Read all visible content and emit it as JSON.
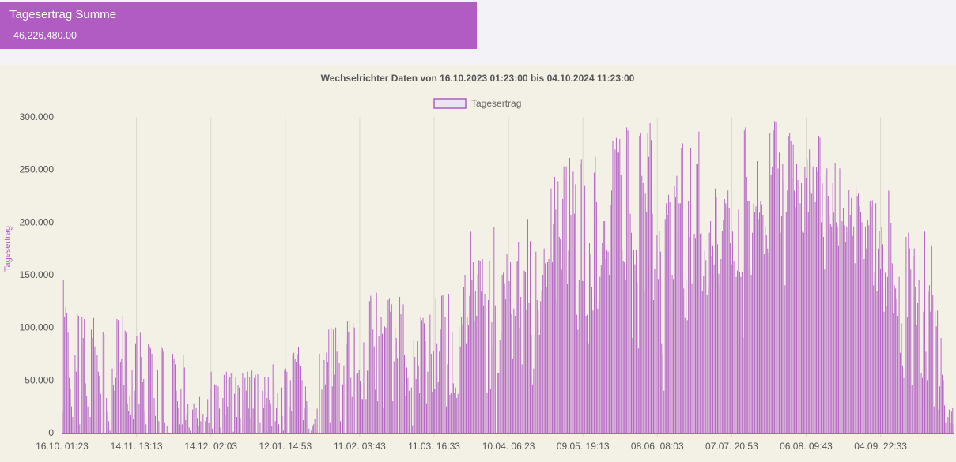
{
  "summary": {
    "title": "Tagesertrag Summe",
    "value": "46,226,480.00"
  },
  "colors": {
    "accent": "#b05cc2",
    "legend_fill": "#e8e6f0",
    "plot_background": "#f3f1e6",
    "page_background": "#f3f2f6"
  },
  "chart_data": {
    "type": "bar",
    "title": "Wechselrichter Daten von 16.10.2023 01:23:00 bis 04.10.2024 11:23:00",
    "legend": [
      "Tagesertrag"
    ],
    "legend_position": "top",
    "ylabel": "Tagesertrag",
    "ylim": [
      0,
      300000
    ],
    "y_tick_labels": [
      "0",
      "50.000",
      "100.000",
      "150.000",
      "200.000",
      "250.000",
      "300.000"
    ],
    "x_tick_labels": [
      "16.10. 01:23",
      "14.11. 13:13",
      "14.12. 02:03",
      "12.01. 14:53",
      "11.02. 03:43",
      "11.03. 16:33",
      "10.04. 06:23",
      "09.05. 19:13",
      "08.06. 08:03",
      "07.07. 20:53",
      "06.08. 09:43",
      "04.09. 22:33"
    ],
    "grid": "vertical",
    "series": [
      {
        "name": "Tagesertrag",
        "values": [
          20000,
          145000,
          110000,
          119000,
          114000,
          95000,
          52000,
          42000,
          25000,
          15000,
          0,
          74000,
          58000,
          113000,
          111000,
          8000,
          0,
          110000,
          90000,
          108000,
          47000,
          35000,
          25000,
          32000,
          15000,
          98000,
          90000,
          109000,
          82000,
          0,
          74000,
          58000,
          54000,
          37000,
          0,
          96000,
          93000,
          0,
          33000,
          20000,
          11000,
          2000,
          80000,
          61000,
          45000,
          40000,
          52000,
          108000,
          107000,
          0,
          67000,
          70000,
          111000,
          45000,
          97000,
          95000,
          28000,
          21000,
          35000,
          17000,
          60000,
          13000,
          40000,
          85000,
          92000,
          87000,
          27000,
          95000,
          72000,
          48000,
          51000,
          20000,
          8000,
          0,
          84000,
          82000,
          80000,
          75000,
          60000,
          33000,
          16000,
          0,
          60000,
          11000,
          0,
          82000,
          80000,
          77000,
          10000,
          0,
          6000,
          1000,
          0,
          0,
          0,
          75000,
          70000,
          65000,
          40000,
          30000,
          24000,
          8000,
          42000,
          8000,
          74000,
          62000,
          12000,
          18000,
          27000,
          5000,
          2000,
          0,
          22000,
          28000,
          10000,
          24000,
          14000,
          6000,
          34000,
          11000,
          20000,
          18000,
          0,
          11000,
          15000,
          32000,
          9000,
          41000,
          58000,
          4000,
          0,
          46000,
          45000,
          26000,
          44000,
          23000,
          5000,
          0,
          33000,
          55000,
          17000,
          58000,
          25000,
          51000,
          53000,
          57000,
          58000,
          1000,
          37000,
          53000,
          15000,
          45000,
          43000,
          14000,
          0,
          57000,
          32000,
          52000,
          40000,
          58000,
          23000,
          53000,
          14000,
          59000,
          23000,
          52000,
          55000,
          0,
          56000,
          45000,
          10000,
          0,
          40000,
          24000,
          53000,
          26000,
          33000,
          53000,
          31000,
          28000,
          6000,
          65000,
          48000,
          11000,
          24000,
          38000,
          8000,
          0,
          43000,
          16000,
          2000,
          60000,
          61000,
          58000,
          0,
          25000,
          50000,
          21000,
          74000,
          76000,
          70000,
          67000,
          75000,
          81000,
          65000,
          63000,
          50000,
          12000,
          23000,
          44000,
          30000,
          25000,
          4000,
          0,
          2000,
          6000,
          8000,
          13000,
          3000,
          23000,
          0,
          75000,
          0,
          41000,
          54000,
          69000,
          46000,
          76000,
          67000,
          98000,
          10000,
          100000,
          44000,
          98000,
          55000,
          100000,
          77000,
          94000,
          66000,
          11000,
          0,
          46000,
          64000,
          0,
          85000,
          106000,
          96000,
          108000,
          52000,
          34000,
          104000,
          100000,
          0,
          56000,
          57000,
          60000,
          49000,
          32000,
          32000,
          86000,
          55000,
          32000,
          59000,
          59000,
          125000,
          130000,
          128000,
          98000,
          82000,
          41000,
          133000,
          30000,
          92000,
          95000,
          110000,
          94000,
          24000,
          101000,
          100000,
          100000,
          126000,
          128000,
          115000,
          122000,
          30000,
          68000,
          100000,
          90000,
          71000,
          0,
          129000,
          113000,
          55000,
          122000,
          74000,
          35000,
          62000,
          52000,
          40000,
          0,
          43000,
          7000,
          88000,
          72000,
          51000,
          87000,
          64000,
          38000,
          110000,
          107000,
          109000,
          104000,
          87000,
          28000,
          58000,
          80000,
          112000,
          75000,
          39000,
          78000,
          42000,
          128000,
          85000,
          48000,
          77000,
          98000,
          130000,
          131000,
          101000,
          110000,
          25000,
          65000,
          132000,
          36000,
          38000,
          96000,
          47000,
          38000,
          43000,
          33000,
          37000,
          101000,
          82000,
          110000,
          103000,
          138000,
          150000,
          85000,
          110000,
          102000,
          130000,
          191000,
          145000,
          162000,
          106000,
          135000,
          111000,
          150000,
          164000,
          163000,
          134000,
          165000,
          121000,
          132000,
          166000,
          38000,
          126000,
          163000,
          42000,
          105000,
          79000,
          195000,
          121000,
          0,
          57000,
          57000,
          88000,
          95000,
          150000,
          152000,
          142000,
          127000,
          170000,
          158000,
          144000,
          162000,
          113000,
          70000,
          118000,
          111000,
          162000,
          163000,
          181000,
          100000,
          129000,
          65000,
          152000,
          154000,
          153000,
          117000,
          203000,
          123000,
          182000,
          93000,
          46000,
          61000,
          93000,
          172000,
          126000,
          117000,
          93000,
          125000,
          135000,
          150000,
          175000,
          161000,
          138000,
          162000,
          165000,
          107000,
          232000,
          162000,
          198000,
          243000,
          212000,
          125000,
          239000,
          186000,
          184000,
          155000,
          222000,
          253000,
          240000,
          253000,
          141000,
          173000,
          261000,
          207000,
          155000,
          248000,
          208000,
          236000,
          112000,
          98000,
          145000,
          255000,
          260000,
          144000,
          144000,
          235000,
          111000,
          112000,
          85000,
          180000,
          170000,
          138000,
          116000,
          247000,
          262000,
          219000,
          118000,
          125000,
          148000,
          159000,
          180000,
          201000,
          201000,
          165000,
          174000,
          172000,
          150000,
          216000,
          230000,
          277000,
          262000,
          269000,
          280000,
          266000,
          266000,
          279000,
          245000,
          173000,
          163000,
          162000,
          145000,
          290000,
          287000,
          277000,
          208000,
          190000,
          90000,
          174000,
          160000,
          174000,
          143000,
          80000,
          282000,
          285000,
          244000,
          237000,
          134000,
          227000,
          210000,
          285000,
          262000,
          294000,
          278000,
          208000,
          126000,
          156000,
          235000,
          188000,
          146000,
          192000,
          172000,
          85000,
          74000,
          40000,
          203000,
          218000,
          207000,
          226000,
          219000,
          119000,
          150000,
          146000,
          234000,
          224000,
          244000,
          186000,
          218000,
          218000,
          270000,
          275000,
          137000,
          109000,
          146000,
          107000,
          220000,
          186000,
          270000,
          142000,
          160000,
          189000,
          185000,
          255000,
          255000,
          286000,
          189000,
          190000,
          135000,
          149000,
          173000,
          164000,
          131000,
          138000,
          190000,
          201000,
          168000,
          178000,
          160000,
          232000,
          224000,
          179000,
          151000,
          140000,
          165000,
          192000,
          202000,
          222000,
          218000,
          215000,
          230000,
          213000,
          180000,
          160000,
          191000,
          163000,
          108000,
          148000,
          154000,
          212000,
          153000,
          148000,
          153000,
          90000,
          287000,
          290000,
          243000,
          220000,
          220000,
          156000,
          150000,
          190000,
          218000,
          210000,
          215000,
          258000,
          203000,
          209000,
          220000,
          217000,
          207000,
          170000,
          195000,
          188000,
          175000,
          171000,
          285000,
          245000,
          252000,
          287000,
          296000,
          295000,
          275000,
          251000,
          266000,
          190000,
          206000,
          255000,
          240000,
          140000,
          210000,
          230000,
          282000,
          285000,
          277000,
          242000,
          274000,
          230000,
          214000,
          255000,
          240000,
          270000,
          218000,
          237000,
          191000,
          190000,
          252000,
          242000,
          260000,
          210000,
          269000,
          229000,
          227000,
          253000,
          230000,
          219000,
          252000,
          248000,
          282000,
          280000,
          200000,
          237000,
          186000,
          155000,
          244000,
          251000,
          225000,
          207000,
          198000,
          196000,
          237000,
          209000,
          256000,
          200000,
          195000,
          178000,
          251000,
          232000,
          201000,
          213000,
          197000,
          181000,
          196000,
          190000,
          231000,
          207000,
          223000,
          187000,
          196000,
          161000,
          235000,
          225000,
          227000,
          215000,
          210000,
          200000,
          160000,
          165000,
          196000,
          175000,
          202000,
          197000,
          220000,
          215000,
          221000,
          140000,
          153000,
          218000,
          135000,
          175000,
          192000,
          156000,
          195000,
          179000,
          115000,
          152000,
          120000,
          148000,
          230000,
          229000,
          199000,
          161000,
          114000,
          140000,
          137000,
          127000,
          111000,
          148000,
          76000,
          104000,
          64000,
          52000,
          80000,
          186000,
          110000,
          190000,
          175000,
          155000,
          45000,
          168000,
          175000,
          138000,
          102000,
          123000,
          145000,
          20000,
          57000,
          52000,
          115000,
          191000,
          77000,
          50000,
          134000,
          140000,
          115000,
          178000,
          131000,
          25000,
          115000,
          101000,
          116000,
          22000,
          44000,
          90000,
          55000,
          50000,
          26000,
          10000,
          52000,
          15000,
          22000,
          10000,
          20000,
          24000,
          8000
        ],
        "color": "#b05cc2"
      }
    ]
  }
}
